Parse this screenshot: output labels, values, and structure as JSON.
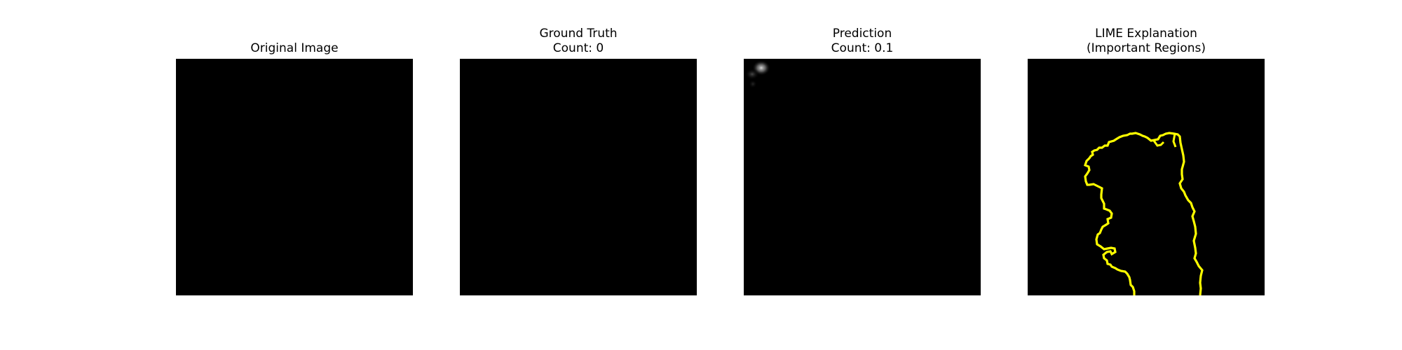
{
  "panels": [
    {
      "title_lines": [
        "Original Image"
      ]
    },
    {
      "title_lines": [
        "Ground Truth",
        "Count: 0"
      ]
    },
    {
      "title_lines": [
        "Prediction",
        "Count: 0.1"
      ]
    },
    {
      "title_lines": [
        "LIME Explanation",
        "(Important Regions)"
      ],
      "boundary_color": "#ffff00"
    }
  ],
  "colors": {
    "image_background": "#000000",
    "page_background": "#ffffff",
    "lime_boundary": "#ffff00"
  }
}
